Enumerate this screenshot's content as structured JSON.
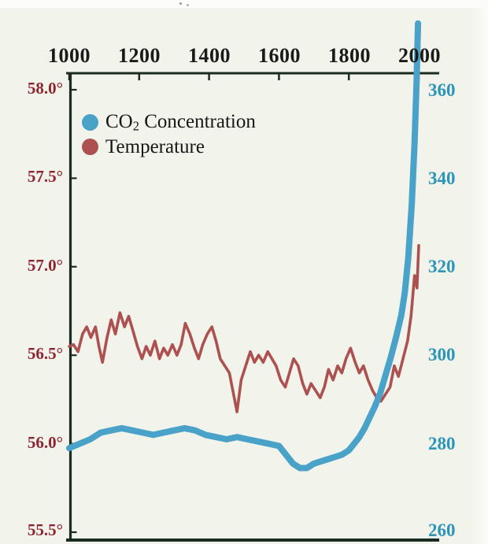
{
  "page": {
    "background": "#f2f4ec"
  },
  "legend": {
    "co2_prefix": "CO",
    "co2_sub": "2",
    "co2_suffix": " Concentration",
    "temperature_label": "Temperature"
  },
  "axes": {
    "top_years": [
      "1000",
      "1200",
      "1400",
      "1600",
      "1800",
      "2000"
    ],
    "left_temp": [
      "58.0°",
      "57.5°",
      "57.0°",
      "56.5°",
      "56.0°",
      "55.5°"
    ],
    "right_co2": [
      "360",
      "340",
      "320",
      "300",
      "280",
      "260"
    ]
  },
  "colors": {
    "co2_line": "#4aa2c9",
    "temp_line": "#ad5150",
    "left_axis_text": "#8e2631",
    "right_axis_text": "#2b94b8",
    "axis_line": "#1a2b20"
  },
  "chart_data": {
    "type": "line",
    "title": "",
    "x_range": [
      1000,
      2000
    ],
    "x_ticks": [
      1000,
      1200,
      1400,
      1600,
      1800,
      2000
    ],
    "y_left": {
      "range": [
        55.5,
        58.0
      ],
      "ticks": [
        58.0,
        57.5,
        57.0,
        56.5,
        56.0,
        55.5
      ]
    },
    "y_right": {
      "range": [
        260,
        360
      ],
      "ticks": [
        360,
        340,
        320,
        300,
        280,
        260
      ]
    },
    "grid": false,
    "legend_position": "top-left",
    "series": [
      {
        "name": "Temperature",
        "axis": "left",
        "color": "#ad5150",
        "width": 3.6,
        "points": [
          [
            1000,
            56.55
          ],
          [
            1012,
            56.56
          ],
          [
            1025,
            56.52
          ],
          [
            1038,
            56.62
          ],
          [
            1050,
            56.66
          ],
          [
            1062,
            56.6
          ],
          [
            1075,
            56.66
          ],
          [
            1085,
            56.55
          ],
          [
            1095,
            56.46
          ],
          [
            1108,
            56.6
          ],
          [
            1120,
            56.7
          ],
          [
            1132,
            56.62
          ],
          [
            1145,
            56.74
          ],
          [
            1158,
            56.66
          ],
          [
            1170,
            56.72
          ],
          [
            1182,
            56.64
          ],
          [
            1195,
            56.55
          ],
          [
            1208,
            56.48
          ],
          [
            1220,
            56.55
          ],
          [
            1232,
            56.5
          ],
          [
            1245,
            56.58
          ],
          [
            1258,
            56.48
          ],
          [
            1270,
            56.54
          ],
          [
            1282,
            56.5
          ],
          [
            1295,
            56.56
          ],
          [
            1308,
            56.5
          ],
          [
            1320,
            56.56
          ],
          [
            1332,
            56.68
          ],
          [
            1345,
            56.62
          ],
          [
            1358,
            56.54
          ],
          [
            1370,
            56.48
          ],
          [
            1382,
            56.56
          ],
          [
            1395,
            56.62
          ],
          [
            1408,
            56.66
          ],
          [
            1420,
            56.58
          ],
          [
            1432,
            56.48
          ],
          [
            1445,
            56.44
          ],
          [
            1458,
            56.4
          ],
          [
            1470,
            56.28
          ],
          [
            1480,
            56.18
          ],
          [
            1492,
            56.36
          ],
          [
            1505,
            56.44
          ],
          [
            1518,
            56.52
          ],
          [
            1530,
            56.46
          ],
          [
            1542,
            56.5
          ],
          [
            1555,
            56.46
          ],
          [
            1568,
            56.52
          ],
          [
            1580,
            56.48
          ],
          [
            1592,
            56.44
          ],
          [
            1605,
            56.36
          ],
          [
            1618,
            56.32
          ],
          [
            1630,
            56.4
          ],
          [
            1642,
            56.48
          ],
          [
            1655,
            56.44
          ],
          [
            1668,
            56.34
          ],
          [
            1680,
            56.28
          ],
          [
            1692,
            56.34
          ],
          [
            1705,
            56.3
          ],
          [
            1718,
            56.26
          ],
          [
            1730,
            56.32
          ],
          [
            1742,
            56.42
          ],
          [
            1755,
            56.36
          ],
          [
            1768,
            56.44
          ],
          [
            1780,
            56.4
          ],
          [
            1792,
            56.48
          ],
          [
            1805,
            56.54
          ],
          [
            1818,
            56.46
          ],
          [
            1830,
            56.4
          ],
          [
            1842,
            56.44
          ],
          [
            1855,
            56.36
          ],
          [
            1868,
            56.3
          ],
          [
            1880,
            56.26
          ],
          [
            1892,
            56.24
          ],
          [
            1905,
            56.28
          ],
          [
            1918,
            56.32
          ],
          [
            1930,
            56.44
          ],
          [
            1942,
            56.38
          ],
          [
            1955,
            56.48
          ],
          [
            1968,
            56.58
          ],
          [
            1978,
            56.72
          ],
          [
            1988,
            56.95
          ],
          [
            1995,
            56.88
          ],
          [
            2000,
            57.12
          ]
        ]
      },
      {
        "name": "CO2 Concentration",
        "axis": "right",
        "color": "#4aa2c9",
        "width": 8,
        "points": [
          [
            1000,
            279
          ],
          [
            1030,
            280
          ],
          [
            1060,
            281
          ],
          [
            1090,
            282.5
          ],
          [
            1120,
            283
          ],
          [
            1150,
            283.5
          ],
          [
            1180,
            283
          ],
          [
            1210,
            282.5
          ],
          [
            1240,
            282
          ],
          [
            1270,
            282.5
          ],
          [
            1300,
            283
          ],
          [
            1330,
            283.5
          ],
          [
            1360,
            283
          ],
          [
            1390,
            282
          ],
          [
            1420,
            281.5
          ],
          [
            1450,
            281
          ],
          [
            1480,
            281.5
          ],
          [
            1510,
            281
          ],
          [
            1540,
            280.5
          ],
          [
            1570,
            280
          ],
          [
            1600,
            279.5
          ],
          [
            1620,
            277.5
          ],
          [
            1640,
            275.5
          ],
          [
            1660,
            274.5
          ],
          [
            1680,
            274.5
          ],
          [
            1700,
            275.5
          ],
          [
            1720,
            276
          ],
          [
            1740,
            276.5
          ],
          [
            1760,
            277
          ],
          [
            1780,
            277.5
          ],
          [
            1800,
            278.5
          ],
          [
            1815,
            280
          ],
          [
            1830,
            281.5
          ],
          [
            1845,
            283.5
          ],
          [
            1860,
            286
          ],
          [
            1875,
            288.5
          ],
          [
            1890,
            291.5
          ],
          [
            1905,
            295.5
          ],
          [
            1920,
            299.5
          ],
          [
            1935,
            304
          ],
          [
            1950,
            309
          ],
          [
            1960,
            314
          ],
          [
            1970,
            322
          ],
          [
            1980,
            334
          ],
          [
            1988,
            348
          ],
          [
            1994,
            362
          ],
          [
            1998,
            375
          ]
        ]
      }
    ]
  }
}
